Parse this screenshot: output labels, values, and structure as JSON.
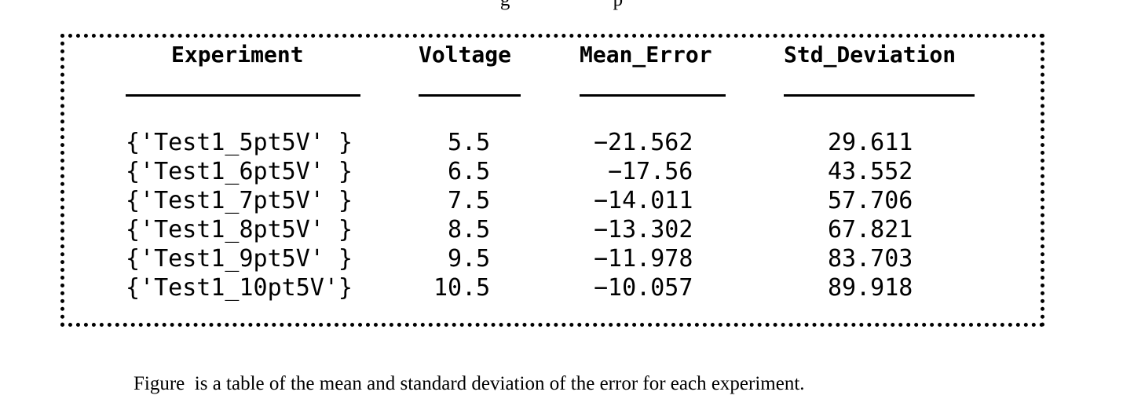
{
  "top_fragment": "g                     p",
  "table": {
    "headers": {
      "experiment": "Experiment",
      "voltage": "Voltage",
      "mean_error": "Mean_Error",
      "std_deviation": "Std_Deviation"
    },
    "rows": [
      {
        "experiment": "{'Test1_5pt5V' }",
        "voltage": "5.5",
        "mean_error": "−21.562",
        "std_deviation": "29.611"
      },
      {
        "experiment": "{'Test1_6pt5V' }",
        "voltage": "6.5",
        "mean_error": "−17.56",
        "std_deviation": "43.552"
      },
      {
        "experiment": "{'Test1_7pt5V' }",
        "voltage": "7.5",
        "mean_error": "−14.011",
        "std_deviation": "57.706"
      },
      {
        "experiment": "{'Test1_8pt5V' }",
        "voltage": "8.5",
        "mean_error": "−13.302",
        "std_deviation": "67.821"
      },
      {
        "experiment": "{'Test1_9pt5V' }",
        "voltage": "9.5",
        "mean_error": "−11.978",
        "std_deviation": "83.703"
      },
      {
        "experiment": "{'Test1_10pt5V'}",
        "voltage": "10.5",
        "mean_error": "−10.057",
        "std_deviation": "89.918"
      }
    ]
  },
  "caption": "Figure  is a table of the mean and standard deviation of the error for each experiment."
}
